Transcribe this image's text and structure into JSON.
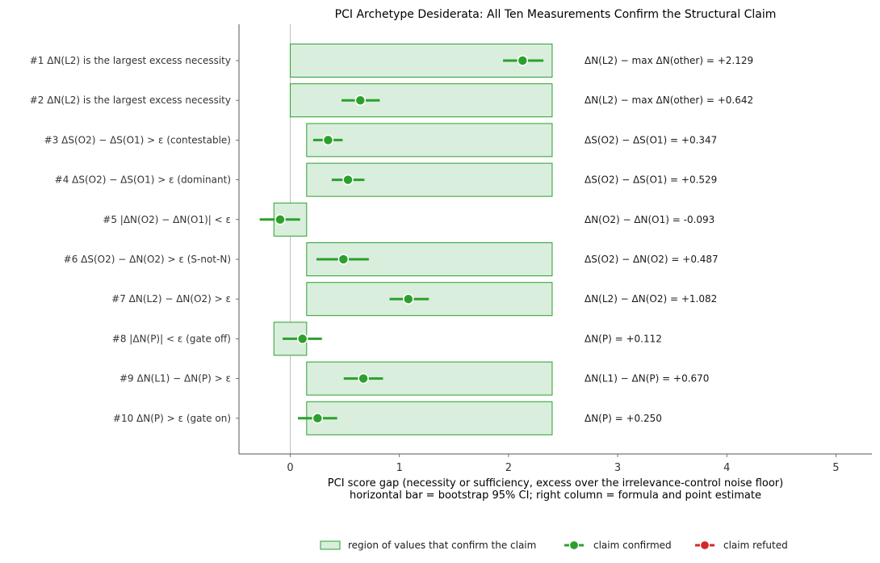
{
  "chart_data": {
    "type": "forest",
    "title": "PCI Archetype Desiderata: All Ten Measurements Confirm the Structural Claim",
    "xlabel_line1": "PCI score gap (necessity or sufficiency, excess over the irrelevance-control noise floor)",
    "xlabel_line2": "horizontal bar = bootstrap 95% CI; right column = formula and point estimate",
    "xlim": [
      -0.47,
      5.33
    ],
    "xticks": [
      0,
      1,
      2,
      3,
      4,
      5
    ],
    "xtick_labels": [
      "0",
      "1",
      "2",
      "3",
      "4",
      "5"
    ],
    "grid": false,
    "colors": {
      "confirmed": "#2ca02c",
      "refuted": "#d62728",
      "region_fill": "#d9eedd",
      "region_edge": "#2ca02c"
    },
    "rows": [
      {
        "label": "#1  ΔN(L2) is the largest excess necessity",
        "value": 2.129,
        "ci": [
          1.95,
          2.32
        ],
        "region": [
          0.0,
          2.4
        ],
        "status": "confirmed",
        "annotation": "ΔN(L2) − max ΔN(other) = +2.129"
      },
      {
        "label": "#2  ΔN(L2) is the largest excess necessity",
        "value": 0.642,
        "ci": [
          0.47,
          0.82
        ],
        "region": [
          0.0,
          2.4
        ],
        "status": "confirmed",
        "annotation": "ΔN(L2) − max ΔN(other) = +0.642"
      },
      {
        "label": "#3  ΔS(O2) − ΔS(O1) > ε  (contestable)",
        "value": 0.347,
        "ci": [
          0.21,
          0.48
        ],
        "region": [
          0.15,
          2.4
        ],
        "status": "confirmed",
        "annotation": "ΔS(O2) − ΔS(O1) = +0.347"
      },
      {
        "label": "#4  ΔS(O2) − ΔS(O1) > ε  (dominant)",
        "value": 0.529,
        "ci": [
          0.38,
          0.68
        ],
        "region": [
          0.15,
          2.4
        ],
        "status": "confirmed",
        "annotation": "ΔS(O2) − ΔS(O1) = +0.529"
      },
      {
        "label": "#5  |ΔN(O2) − ΔN(O1)| < ε",
        "value": -0.093,
        "ci": [
          -0.28,
          0.09
        ],
        "region": [
          -0.15,
          0.15
        ],
        "status": "confirmed",
        "annotation": "ΔN(O2) − ΔN(O1) = -0.093"
      },
      {
        "label": "#6  ΔS(O2) − ΔN(O2) > ε  (S-not-N)",
        "value": 0.487,
        "ci": [
          0.24,
          0.72
        ],
        "region": [
          0.15,
          2.4
        ],
        "status": "confirmed",
        "annotation": "ΔS(O2) − ΔN(O2) = +0.487"
      },
      {
        "label": "#7  ΔN(L2) − ΔN(O2) > ε",
        "value": 1.082,
        "ci": [
          0.91,
          1.27
        ],
        "region": [
          0.15,
          2.4
        ],
        "status": "confirmed",
        "annotation": "ΔN(L2) − ΔN(O2) = +1.082"
      },
      {
        "label": "#8  |ΔN(P)| < ε  (gate off)",
        "value": 0.112,
        "ci": [
          -0.07,
          0.29
        ],
        "region": [
          -0.15,
          0.15
        ],
        "status": "confirmed",
        "annotation": "ΔN(P) = +0.112"
      },
      {
        "label": "#9  ΔN(L1) − ΔN(P) > ε",
        "value": 0.67,
        "ci": [
          0.49,
          0.85
        ],
        "region": [
          0.15,
          2.4
        ],
        "status": "confirmed",
        "annotation": "ΔN(L1) − ΔN(P) = +0.670"
      },
      {
        "label": "#10  ΔN(P) > ε  (gate on)",
        "value": 0.25,
        "ci": [
          0.07,
          0.43
        ],
        "region": [
          0.15,
          2.4
        ],
        "status": "confirmed",
        "annotation": "ΔN(P) = +0.250"
      }
    ],
    "legend": {
      "placement": "bottom-center",
      "entries": [
        {
          "kind": "region",
          "label": "region of values that confirm the claim"
        },
        {
          "kind": "confirmed",
          "label": "claim confirmed"
        },
        {
          "kind": "refuted",
          "label": "claim refuted"
        }
      ]
    }
  }
}
